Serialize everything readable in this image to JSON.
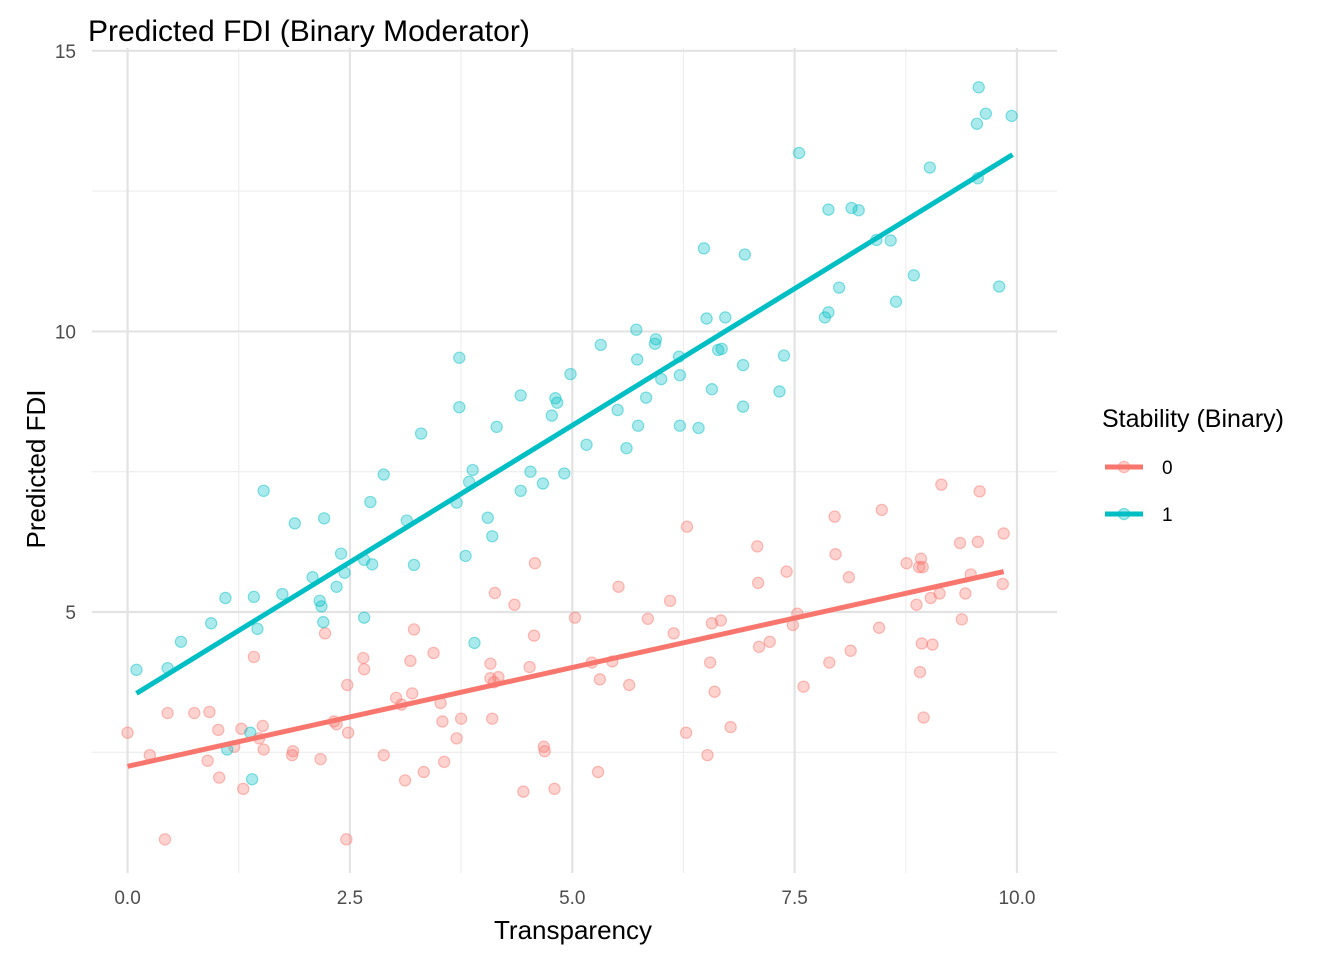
{
  "chart_data": {
    "type": "scatter",
    "title": "Predicted FDI (Binary Moderator)",
    "xlabel": "Transparency",
    "ylabel": "Predicted FDI",
    "xlim": [
      -0.4,
      10.45
    ],
    "ylim": [
      0.35,
      15.05
    ],
    "x_ticks": [
      0.0,
      2.5,
      5.0,
      7.5,
      10.0
    ],
    "x_tick_labels": [
      "0.0",
      "2.5",
      "5.0",
      "7.5",
      "10.0"
    ],
    "y_ticks": [
      5,
      10,
      15
    ],
    "y_tick_labels": [
      "5",
      "10",
      "15"
    ],
    "grid": true,
    "legend": {
      "title": "Stability (Binary)",
      "placement": "right",
      "entries": [
        "0",
        "1"
      ]
    },
    "series": [
      {
        "name": "0",
        "color": "#F8766D",
        "fit_line": [
          [
            0.0,
            2.25
          ],
          [
            9.85,
            5.72
          ]
        ],
        "points": [
          [
            0.0,
            2.85
          ],
          [
            0.25,
            2.45
          ],
          [
            0.42,
            0.95
          ],
          [
            0.45,
            3.2
          ],
          [
            0.75,
            3.2
          ],
          [
            0.9,
            2.35
          ],
          [
            0.92,
            3.22
          ],
          [
            1.02,
            2.9
          ],
          [
            1.03,
            2.05
          ],
          [
            1.2,
            2.6
          ],
          [
            1.28,
            2.92
          ],
          [
            1.3,
            1.85
          ],
          [
            1.42,
            4.2
          ],
          [
            1.48,
            2.75
          ],
          [
            1.52,
            2.97
          ],
          [
            1.53,
            2.55
          ],
          [
            1.85,
            2.45
          ],
          [
            1.86,
            2.52
          ],
          [
            2.17,
            2.38
          ],
          [
            2.22,
            4.62
          ],
          [
            2.32,
            3.05
          ],
          [
            2.35,
            3.0
          ],
          [
            2.46,
            0.95
          ],
          [
            2.47,
            3.7
          ],
          [
            2.48,
            2.85
          ],
          [
            2.65,
            4.18
          ],
          [
            2.66,
            3.98
          ],
          [
            2.88,
            2.45
          ],
          [
            3.02,
            3.47
          ],
          [
            3.08,
            3.35
          ],
          [
            3.12,
            2.0
          ],
          [
            3.18,
            4.13
          ],
          [
            3.2,
            3.55
          ],
          [
            3.22,
            4.69
          ],
          [
            3.33,
            2.15
          ],
          [
            3.44,
            4.27
          ],
          [
            3.52,
            3.38
          ],
          [
            3.54,
            3.05
          ],
          [
            3.56,
            2.33
          ],
          [
            3.7,
            2.75
          ],
          [
            3.75,
            3.1
          ],
          [
            4.08,
            4.08
          ],
          [
            4.08,
            3.82
          ],
          [
            4.1,
            3.1
          ],
          [
            4.12,
            3.75
          ],
          [
            4.13,
            5.34
          ],
          [
            4.17,
            3.84
          ],
          [
            4.35,
            5.13
          ],
          [
            4.45,
            1.8
          ],
          [
            4.52,
            4.02
          ],
          [
            4.57,
            4.58
          ],
          [
            4.58,
            5.87
          ],
          [
            4.68,
            2.6
          ],
          [
            4.69,
            2.52
          ],
          [
            4.8,
            1.85
          ],
          [
            5.03,
            4.9
          ],
          [
            5.22,
            4.1
          ],
          [
            5.29,
            2.15
          ],
          [
            5.31,
            3.8
          ],
          [
            5.45,
            4.12
          ],
          [
            5.52,
            5.45
          ],
          [
            5.64,
            3.7
          ],
          [
            5.85,
            4.88
          ],
          [
            6.1,
            5.2
          ],
          [
            6.14,
            4.62
          ],
          [
            6.28,
            2.85
          ],
          [
            6.29,
            6.52
          ],
          [
            6.52,
            2.45
          ],
          [
            6.55,
            4.1
          ],
          [
            6.57,
            4.8
          ],
          [
            6.6,
            3.58
          ],
          [
            6.67,
            4.85
          ],
          [
            6.78,
            2.95
          ],
          [
            7.08,
            6.17
          ],
          [
            7.09,
            5.52
          ],
          [
            7.1,
            4.38
          ],
          [
            7.22,
            4.47
          ],
          [
            7.41,
            5.72
          ],
          [
            7.48,
            4.77
          ],
          [
            7.53,
            4.97
          ],
          [
            7.6,
            3.67
          ],
          [
            7.89,
            4.1
          ],
          [
            7.95,
            6.7
          ],
          [
            7.96,
            6.03
          ],
          [
            8.11,
            5.62
          ],
          [
            8.13,
            4.31
          ],
          [
            8.45,
            4.72
          ],
          [
            8.48,
            6.82
          ],
          [
            8.76,
            5.87
          ],
          [
            8.87,
            5.13
          ],
          [
            8.9,
            5.8
          ],
          [
            8.91,
            3.93
          ],
          [
            8.92,
            5.95
          ],
          [
            8.93,
            4.44
          ],
          [
            8.94,
            5.8
          ],
          [
            8.95,
            3.12
          ],
          [
            9.03,
            5.25
          ],
          [
            9.05,
            4.42
          ],
          [
            9.13,
            5.33
          ],
          [
            9.15,
            7.27
          ],
          [
            9.36,
            6.23
          ],
          [
            9.38,
            4.87
          ],
          [
            9.42,
            5.33
          ],
          [
            9.48,
            5.67
          ],
          [
            9.56,
            6.25
          ],
          [
            9.58,
            7.15
          ],
          [
            9.84,
            5.5
          ],
          [
            9.85,
            6.4
          ]
        ]
      },
      {
        "name": "1",
        "color": "#00BFC4",
        "fit_line": [
          [
            0.1,
            3.55
          ],
          [
            9.95,
            13.15
          ]
        ],
        "points": [
          [
            0.1,
            3.97
          ],
          [
            0.45,
            4.0
          ],
          [
            0.6,
            4.47
          ],
          [
            0.94,
            4.8
          ],
          [
            1.1,
            5.25
          ],
          [
            1.12,
            2.55
          ],
          [
            1.38,
            2.85
          ],
          [
            1.4,
            2.02
          ],
          [
            1.42,
            5.27
          ],
          [
            1.46,
            4.7
          ],
          [
            1.53,
            7.16
          ],
          [
            1.74,
            5.32
          ],
          [
            1.88,
            6.58
          ],
          [
            2.08,
            5.62
          ],
          [
            2.16,
            5.2
          ],
          [
            2.18,
            5.1
          ],
          [
            2.2,
            4.82
          ],
          [
            2.21,
            6.67
          ],
          [
            2.35,
            5.45
          ],
          [
            2.4,
            6.04
          ],
          [
            2.44,
            5.7
          ],
          [
            2.66,
            4.9
          ],
          [
            2.66,
            5.93
          ],
          [
            2.73,
            6.96
          ],
          [
            2.75,
            5.85
          ],
          [
            2.88,
            7.45
          ],
          [
            3.14,
            6.63
          ],
          [
            3.22,
            5.84
          ],
          [
            3.3,
            8.18
          ],
          [
            3.7,
            6.95
          ],
          [
            3.73,
            8.65
          ],
          [
            3.73,
            9.53
          ],
          [
            3.8,
            6.0
          ],
          [
            3.84,
            7.32
          ],
          [
            3.88,
            7.53
          ],
          [
            3.9,
            4.45
          ],
          [
            4.05,
            6.68
          ],
          [
            4.1,
            6.35
          ],
          [
            4.15,
            8.3
          ],
          [
            4.42,
            7.16
          ],
          [
            4.42,
            8.86
          ],
          [
            4.53,
            7.5
          ],
          [
            4.67,
            7.29
          ],
          [
            4.77,
            8.5
          ],
          [
            4.81,
            8.81
          ],
          [
            4.83,
            8.73
          ],
          [
            4.91,
            7.47
          ],
          [
            4.98,
            9.24
          ],
          [
            5.16,
            7.98
          ],
          [
            5.32,
            9.76
          ],
          [
            5.51,
            8.6
          ],
          [
            5.61,
            7.92
          ],
          [
            5.72,
            10.03
          ],
          [
            5.73,
            9.5
          ],
          [
            5.74,
            8.32
          ],
          [
            5.83,
            8.82
          ],
          [
            5.93,
            9.78
          ],
          [
            5.94,
            9.86
          ],
          [
            6.0,
            9.15
          ],
          [
            6.2,
            9.55
          ],
          [
            6.21,
            8.32
          ],
          [
            6.21,
            9.22
          ],
          [
            6.42,
            8.28
          ],
          [
            6.48,
            11.48
          ],
          [
            6.51,
            10.23
          ],
          [
            6.57,
            8.97
          ],
          [
            6.64,
            9.67
          ],
          [
            6.68,
            9.69
          ],
          [
            6.72,
            10.25
          ],
          [
            6.92,
            8.66
          ],
          [
            6.92,
            9.4
          ],
          [
            6.94,
            11.37
          ],
          [
            7.33,
            8.93
          ],
          [
            7.38,
            9.57
          ],
          [
            7.55,
            13.18
          ],
          [
            7.84,
            10.25
          ],
          [
            7.88,
            10.34
          ],
          [
            7.88,
            12.17
          ],
          [
            8.0,
            10.78
          ],
          [
            8.14,
            12.2
          ],
          [
            8.22,
            12.16
          ],
          [
            8.42,
            11.63
          ],
          [
            8.58,
            11.62
          ],
          [
            8.64,
            10.53
          ],
          [
            8.84,
            11.0
          ],
          [
            9.02,
            12.92
          ],
          [
            9.55,
            13.7
          ],
          [
            9.56,
            12.73
          ],
          [
            9.57,
            14.35
          ],
          [
            9.65,
            13.88
          ],
          [
            9.8,
            10.8
          ],
          [
            9.94,
            13.84
          ]
        ]
      }
    ]
  }
}
